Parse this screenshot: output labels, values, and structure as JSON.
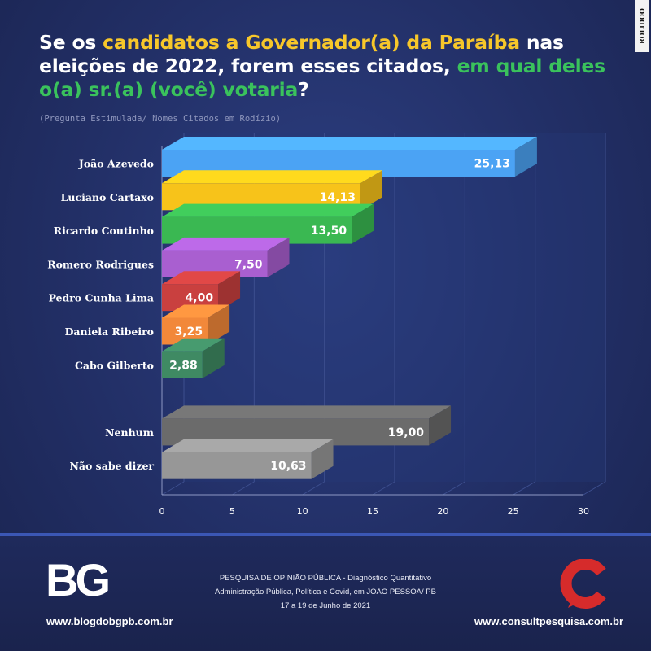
{
  "title": {
    "part1": "Se os ",
    "part2": "candidatos a Governador(a) da Paraíba",
    "part3": " nas eleições de 2022, forem esses citados, ",
    "part4": "em qual deles o(a) sr.(a) (você) votaria",
    "part5": "?"
  },
  "subtitle": "(Pregunta Estimulada/ Nomes Citados em Rodízio)",
  "side_logo": "ROLIDOO",
  "chart_data": {
    "type": "bar",
    "orientation": "horizontal",
    "categories": [
      "João Azevedo",
      "Luciano Cartaxo",
      "Ricardo Coutinho",
      "Romero Rodrigues",
      "Pedro Cunha Lima",
      "Daniela Ribeiro",
      "Cabo Gilberto",
      "",
      "Nenhum",
      "Não sabe dizer"
    ],
    "values": [
      25.13,
      14.13,
      13.5,
      7.5,
      4.0,
      3.25,
      2.88,
      null,
      19.0,
      10.63
    ],
    "labels": [
      "25,13",
      "14,13",
      "13,50",
      "7,50",
      "4,00",
      "3,25",
      "2,88",
      "",
      "19,00",
      "10,63"
    ],
    "colors": [
      "#4ba3f4",
      "#f7c31a",
      "#3ab852",
      "#a95fd0",
      "#c9403f",
      "#f2883a",
      "#3f8a63",
      "",
      "#6b6b6b",
      "#979797"
    ],
    "xlim": [
      0,
      30
    ],
    "xticks": [
      "0",
      "5",
      "10",
      "15",
      "20",
      "25",
      "30"
    ],
    "grid": true
  },
  "footer": {
    "left_logo": "BG",
    "left_url": "www.blogdobgpb.com.br",
    "center_lines": [
      "PESQUISA DE OPINIÃO PÚBLICA - Diagnóstico Quantitativo",
      "Administração Pública, Política e Covid, em JOÃO PESSOA/ PB",
      "17 a 19 de Junho de 2021"
    ],
    "right_url": "www.consultpesquisa.com.br",
    "colors": {
      "divider": "#3b57b5",
      "consult_red": "#d62b2b"
    }
  }
}
